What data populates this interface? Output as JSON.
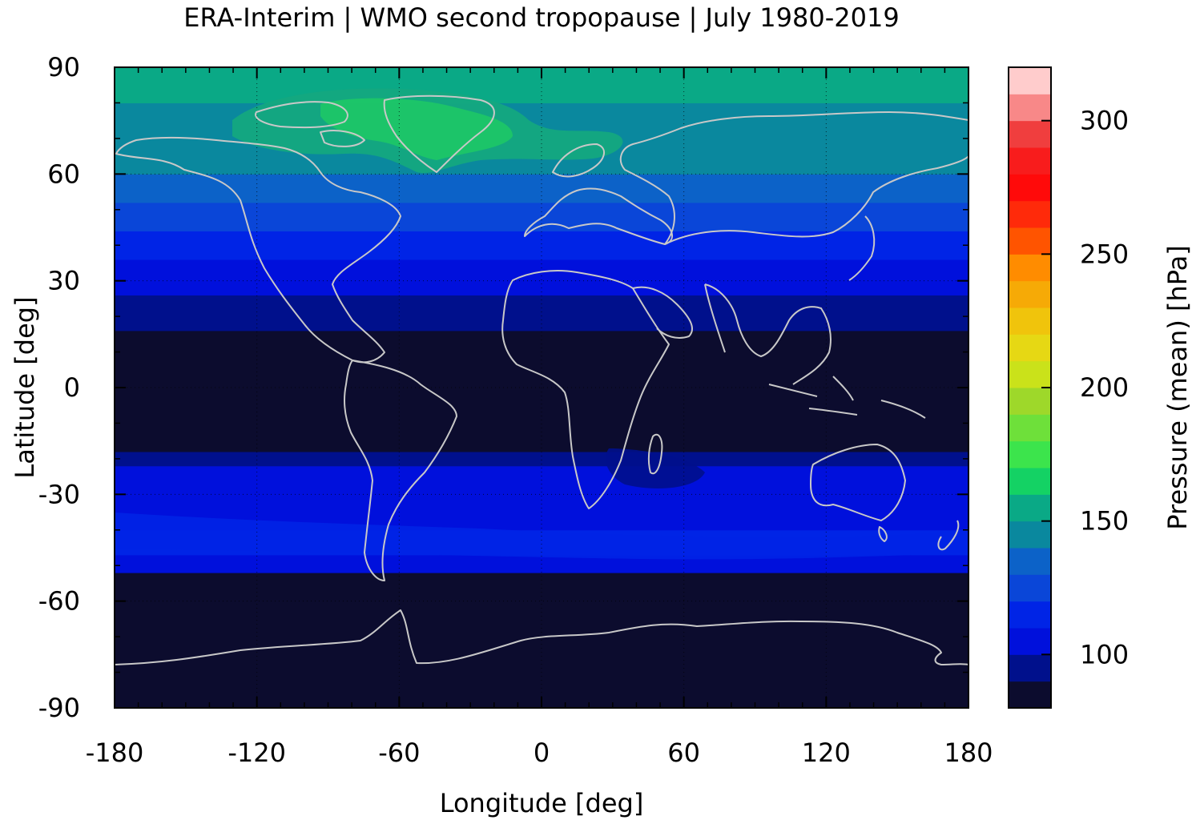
{
  "chart_data": {
    "type": "heatmap",
    "title": "ERA-Interim | WMO second tropopause | July 1980-2019",
    "xlabel": "Longitude [deg]",
    "ylabel": "Latitude [deg]",
    "xlim": [
      -180,
      180
    ],
    "ylim": [
      -90,
      90
    ],
    "xticks": [
      -180,
      -120,
      -60,
      0,
      60,
      120,
      180
    ],
    "yticks": [
      -90,
      -60,
      -30,
      0,
      30,
      60,
      90
    ],
    "xtick_labels": [
      "-180",
      "-120",
      "-60",
      "0",
      "60",
      "120",
      "180"
    ],
    "ytick_labels": [
      "-90",
      "-60",
      "-30",
      "0",
      "30",
      "60",
      "90"
    ],
    "grid": "dotted",
    "colorbar": {
      "label": "Pressure (mean) [hPa]",
      "range": [
        80,
        320
      ],
      "step": 10,
      "ticks": [
        100,
        150,
        200,
        250,
        300
      ],
      "tick_labels": [
        "100",
        "150",
        "200",
        "250",
        "300"
      ],
      "colors": [
        "#0c0c2e",
        "#00108c",
        "#0010dc",
        "#0024e6",
        "#0a46d8",
        "#0c62c8",
        "#0a889e",
        "#0aa986",
        "#14d264",
        "#3ce44c",
        "#6ee03a",
        "#9ed82a",
        "#cae21a",
        "#e6d814",
        "#f0c40c",
        "#f6aa06",
        "#ff8c00",
        "#ff5400",
        "#ff2a0a",
        "#ff0a0a",
        "#f81c1c",
        "#f03e3e",
        "#f88888",
        "#ffcccc"
      ]
    },
    "latitude_bands": [
      {
        "lat": [
          -90,
          -52
        ],
        "pressure": 85
      },
      {
        "lat": [
          -52,
          -47
        ],
        "pressure": 105
      },
      {
        "lat": [
          -47,
          -40
        ],
        "pressure": 115
      },
      {
        "lat": [
          -40,
          -31
        ],
        "pressure": 105
      },
      {
        "lat": [
          -31,
          -22
        ],
        "pressure": 105
      },
      {
        "lat": [
          -22,
          -18
        ],
        "pressure": 95
      },
      {
        "lat": [
          -18,
          16
        ],
        "pressure": 85
      },
      {
        "lat": [
          16,
          26
        ],
        "pressure": 95
      },
      {
        "lat": [
          26,
          36
        ],
        "pressure": 105
      },
      {
        "lat": [
          36,
          44
        ],
        "pressure": 115
      },
      {
        "lat": [
          44,
          52
        ],
        "pressure": 125
      },
      {
        "lat": [
          52,
          60
        ],
        "pressure": 135
      },
      {
        "lat": [
          60,
          80
        ],
        "pressure": 145
      },
      {
        "lat": [
          80,
          90
        ],
        "pressure": 155
      }
    ],
    "coastline_color": "#c8c8c8"
  }
}
